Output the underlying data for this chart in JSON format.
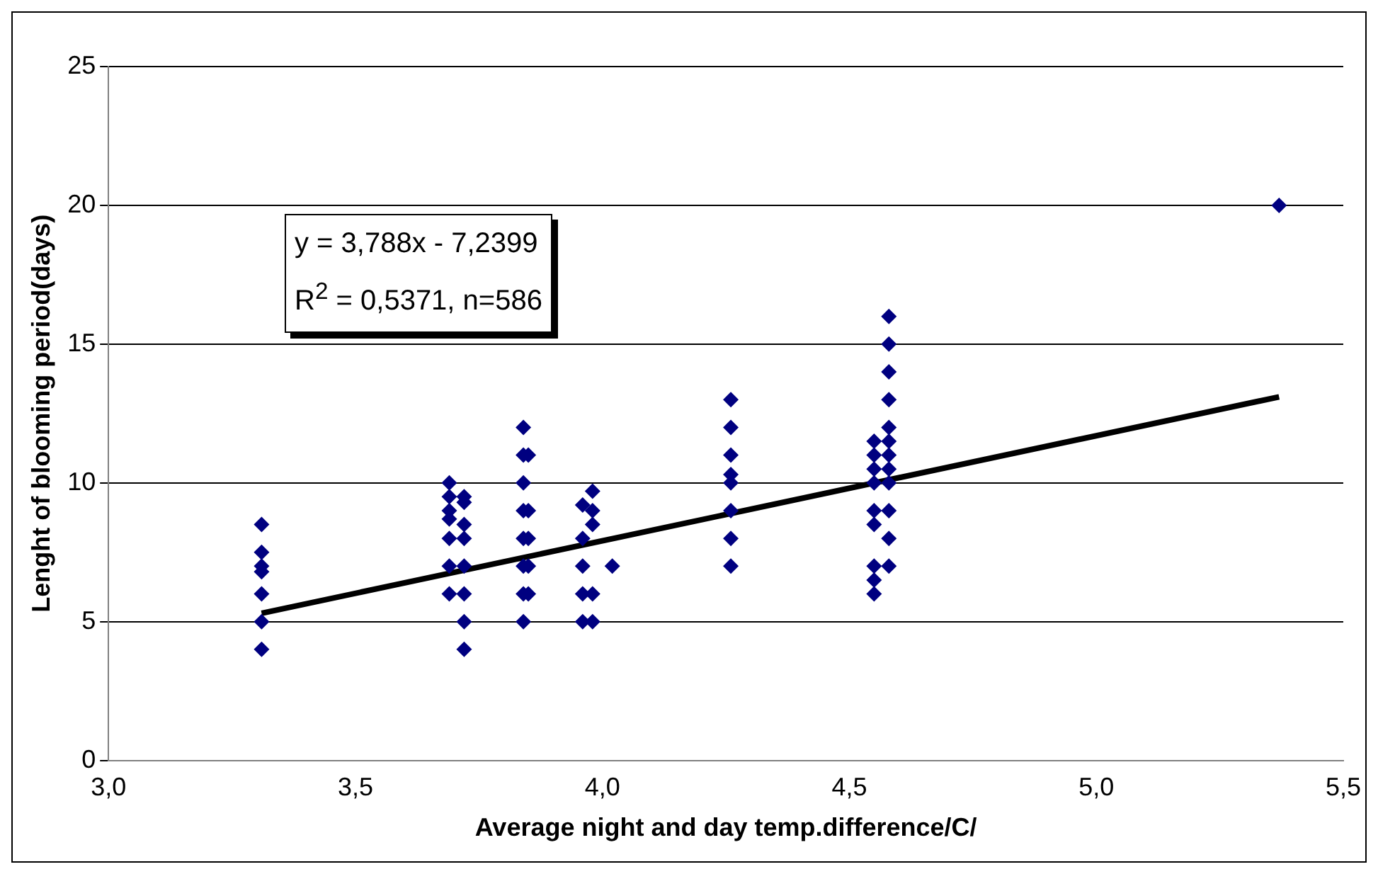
{
  "chart_data": {
    "type": "scatter",
    "xlabel": "Average night and day temp.difference/C/",
    "ylabel": "Lenght of blooming period(days)",
    "xlim": [
      3.0,
      5.5
    ],
    "xticks": [
      {
        "value": 3.0,
        "label": "3,0"
      },
      {
        "value": 3.5,
        "label": "3,5"
      },
      {
        "value": 4.0,
        "label": "4,0"
      },
      {
        "value": 4.5,
        "label": "4,5"
      },
      {
        "value": 5.0,
        "label": "5,0"
      },
      {
        "value": 5.5,
        "label": "5,5"
      }
    ],
    "ylim": [
      0,
      25
    ],
    "yticks": [
      0,
      5,
      10,
      15,
      20,
      25
    ],
    "grid": "y",
    "legend": false,
    "marker": "diamond",
    "annotations": [
      "y = 3,788x - 7,2399",
      "R$^{2}$ = 0,5371, n=586"
    ],
    "series": [
      {
        "type": "scatter",
        "color": "#000080",
        "x": [
          3.31,
          3.31,
          3.31,
          3.31,
          3.31,
          3.31,
          3.31,
          3.69,
          3.69,
          3.69,
          3.69,
          3.69,
          3.69,
          3.69,
          3.72,
          3.72,
          3.72,
          3.72,
          3.72,
          3.72,
          3.72,
          3.72,
          3.84,
          3.84,
          3.84,
          3.84,
          3.84,
          3.84,
          3.84,
          3.84,
          3.85,
          3.85,
          3.85,
          3.85,
          3.85,
          3.96,
          3.96,
          3.96,
          3.96,
          3.96,
          3.98,
          3.98,
          3.98,
          3.98,
          3.98,
          4.02,
          4.26,
          4.26,
          4.26,
          4.26,
          4.26,
          4.26,
          4.26,
          4.26,
          4.55,
          4.55,
          4.55,
          4.55,
          4.55,
          4.55,
          4.55,
          4.55,
          4.55,
          4.58,
          4.58,
          4.58,
          4.58,
          4.58,
          4.58,
          4.58,
          4.58,
          4.58,
          4.58,
          4.58,
          4.58,
          5.37
        ],
        "values": [
          4,
          5,
          6,
          6.8,
          7,
          7.5,
          8.5,
          6,
          7,
          8,
          8.7,
          9,
          9.5,
          10,
          4,
          5,
          6,
          7,
          8,
          8.5,
          9.3,
          9.5,
          5,
          6,
          7,
          8,
          9,
          10,
          11,
          12,
          6,
          7,
          8,
          9,
          11,
          5,
          6,
          7,
          8,
          9.2,
          5,
          6,
          8.5,
          9,
          9.7,
          7,
          7,
          8,
          9,
          10,
          10.3,
          11,
          12,
          13,
          6,
          6.5,
          7,
          8.5,
          9,
          10,
          10.5,
          11,
          11.5,
          7,
          8,
          9,
          10,
          10.5,
          11,
          11.5,
          12,
          13,
          14,
          15,
          16,
          20
        ]
      },
      {
        "type": "line",
        "color": "#000000",
        "marker": "none",
        "x": [
          3.31,
          5.37
        ],
        "values": [
          5.3,
          13.1
        ]
      }
    ]
  }
}
